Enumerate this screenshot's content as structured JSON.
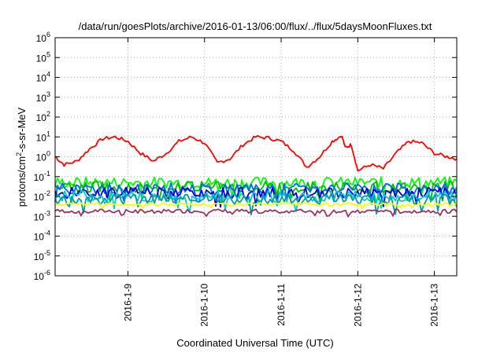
{
  "chart_data": {
    "type": "line",
    "title": "/data/run/goesPlots/archive/2016-01-13/06:00/flux/../flux/5daysMoonFluxes.txt",
    "xlabel": "Coordinated Universal Time (UTC)",
    "ylabel": "protons/cm²-s-sr-MeV",
    "ylabel_parts": {
      "pre": "protons/cm",
      "sup": "2",
      "post": "-s-sr-MeV"
    },
    "yscale": "log",
    "ylim": [
      1e-06,
      1000000
    ],
    "y_ticks": [
      {
        "v": -6,
        "base": "10",
        "exp": "-6"
      },
      {
        "v": -5,
        "base": "10",
        "exp": "-5"
      },
      {
        "v": -4,
        "base": "10",
        "exp": "-4"
      },
      {
        "v": -3,
        "base": "10",
        "exp": "-3"
      },
      {
        "v": -2,
        "base": "10",
        "exp": "-2"
      },
      {
        "v": -1,
        "base": "10",
        "exp": "-1"
      },
      {
        "v": 0,
        "base": "10",
        "exp": "0"
      },
      {
        "v": 1,
        "base": "10",
        "exp": "1"
      },
      {
        "v": 2,
        "base": "10",
        "exp": "2"
      },
      {
        "v": 3,
        "base": "10",
        "exp": "3"
      },
      {
        "v": 4,
        "base": "10",
        "exp": "4"
      },
      {
        "v": 5,
        "base": "10",
        "exp": "5"
      },
      {
        "v": 6,
        "base": "10",
        "exp": "6"
      }
    ],
    "xlim": [
      "2016-01-08 01:12",
      "2016-01-13 07:00"
    ],
    "x_ticks": [
      {
        "t": "2016-01-09 00:00",
        "label": "2016-1-9"
      },
      {
        "t": "2016-01-10 00:00",
        "label": "2016-1-10"
      },
      {
        "t": "2016-01-11 00:00",
        "label": "2016-1-11"
      },
      {
        "t": "2016-01-12 00:00",
        "label": "2016-1-12"
      },
      {
        "t": "2016-01-13 00:00",
        "label": "2016-1-13"
      }
    ],
    "grid": true,
    "legend": "none",
    "series": [
      {
        "color": "#ff0000",
        "x": [
          "2016-01-08 01:12",
          "2016-01-08 04:00",
          "2016-01-08 08:00",
          "2016-01-08 12:00",
          "2016-01-08 16:00",
          "2016-01-08 20:00",
          "2016-01-09 00:00",
          "2016-01-09 04:00",
          "2016-01-09 08:00",
          "2016-01-09 12:00",
          "2016-01-09 16:00",
          "2016-01-09 20:00",
          "2016-01-10 00:00",
          "2016-01-10 04:00",
          "2016-01-10 08:00",
          "2016-01-10 12:00",
          "2016-01-10 16:00",
          "2016-01-10 20:00",
          "2016-01-11 00:00",
          "2016-01-11 04:00",
          "2016-01-11 08:00",
          "2016-01-11 12:00",
          "2016-01-11 16:00",
          "2016-01-11 19:00",
          "2016-01-11 20:00",
          "2016-01-11 22:00",
          "2016-01-12 00:00",
          "2016-01-12 04:00",
          "2016-01-12 08:00",
          "2016-01-12 12:00",
          "2016-01-12 16:00",
          "2016-01-12 20:00",
          "2016-01-13 00:00",
          "2016-01-13 04:00",
          "2016-01-13 07:00"
        ],
        "values": [
          1.0,
          0.4,
          0.6,
          2.5,
          8,
          10,
          6,
          1.5,
          0.6,
          1.5,
          6,
          10,
          5,
          0.5,
          0.8,
          4,
          10,
          9,
          6,
          2,
          0.3,
          1,
          6,
          12,
          3,
          4,
          0.2,
          0.4,
          0.25,
          1.5,
          6,
          5,
          1.5,
          1.0,
          0.8
        ]
      },
      {
        "color": "#00ff00",
        "base": 0.05
      },
      {
        "color": "#00bb00",
        "base": 0.03
      },
      {
        "color": "#0066ff",
        "base": 0.025
      },
      {
        "color": "#0000cc",
        "base": 0.015
      },
      {
        "color": "#00cccc",
        "base": 0.01
      },
      {
        "color": "#0099aa",
        "base": 0.007
      },
      {
        "color": "#ffff00",
        "base": 0.004
      },
      {
        "color": "#993366",
        "base": 0.0018
      }
    ]
  }
}
